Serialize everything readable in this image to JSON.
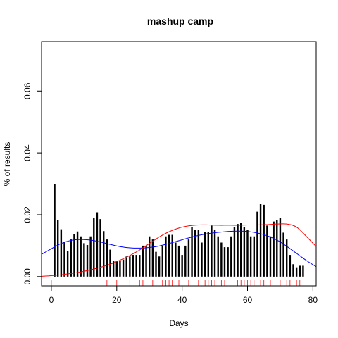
{
  "chart_data": {
    "type": "bar",
    "title": "mashup camp",
    "xlabel": "Days",
    "ylabel": "% of results",
    "xlim": [
      -3,
      81
    ],
    "ylim": [
      -0.003,
      0.076
    ],
    "x_ticks": [
      0,
      20,
      40,
      60,
      80
    ],
    "x_tick_labels": [
      "0",
      "20",
      "40",
      "60",
      "80"
    ],
    "y_ticks": [
      0.0,
      0.02,
      0.04,
      0.06
    ],
    "y_tick_labels": [
      "0.00",
      "0.02",
      "0.04",
      "0.06"
    ],
    "bar_color": "#000000",
    "series": [
      {
        "type": "bar",
        "x": [
          1,
          2,
          3,
          4,
          5,
          6,
          7,
          8,
          9,
          10,
          11,
          12,
          13,
          14,
          15,
          16,
          17,
          18,
          19,
          20,
          21,
          22,
          23,
          24,
          25,
          26,
          27,
          28,
          29,
          30,
          31,
          32,
          33,
          34,
          35,
          36,
          37,
          38,
          39,
          40,
          41,
          42,
          43,
          44,
          45,
          46,
          47,
          48,
          49,
          50,
          51,
          52,
          53,
          54,
          55,
          56,
          57,
          58,
          59,
          60,
          61,
          62,
          63,
          64,
          65,
          66,
          67,
          68,
          69,
          70,
          71,
          72,
          73,
          74,
          75,
          76,
          77
        ],
        "values": [
          0.0298,
          0.0183,
          0.0153,
          0.011,
          0.0082,
          0.012,
          0.0138,
          0.0146,
          0.013,
          0.0108,
          0.0102,
          0.013,
          0.019,
          0.0208,
          0.0186,
          0.0147,
          0.012,
          0.0087,
          0.005,
          0.005,
          0.005,
          0.0055,
          0.0065,
          0.0065,
          0.007,
          0.007,
          0.007,
          0.01,
          0.01,
          0.013,
          0.012,
          0.008,
          0.0065,
          0.01,
          0.013,
          0.0135,
          0.0135,
          0.011,
          0.01,
          0.007,
          0.01,
          0.012,
          0.016,
          0.015,
          0.015,
          0.011,
          0.0145,
          0.0145,
          0.0165,
          0.015,
          0.013,
          0.011,
          0.0095,
          0.0095,
          0.013,
          0.016,
          0.017,
          0.0175,
          0.016,
          0.015,
          0.013,
          0.013,
          0.021,
          0.0235,
          0.0232,
          0.0165,
          0.013,
          0.0178,
          0.0182,
          0.019,
          0.0142,
          0.012,
          0.007,
          0.004,
          0.003,
          0.0035,
          0.0035
        ]
      },
      {
        "type": "line",
        "color": "#0000ff",
        "x": [
          -3,
          0,
          3,
          6,
          9,
          12,
          15,
          18,
          21,
          24,
          27,
          30,
          33,
          36,
          39,
          42,
          45,
          48,
          51,
          54,
          57,
          60,
          63,
          66,
          69,
          72,
          75,
          78,
          81
        ],
        "values": [
          0.0072,
          0.009,
          0.0107,
          0.0117,
          0.012,
          0.0118,
          0.0112,
          0.0104,
          0.0097,
          0.0093,
          0.0092,
          0.0094,
          0.0099,
          0.0107,
          0.0116,
          0.0125,
          0.0133,
          0.0139,
          0.0143,
          0.0146,
          0.0147,
          0.0146,
          0.0141,
          0.0132,
          0.0118,
          0.0098,
          0.0075,
          0.0052,
          0.0032
        ]
      },
      {
        "type": "line",
        "color": "#ff0000",
        "x": [
          -3,
          0,
          3,
          6,
          9,
          12,
          15,
          18,
          21,
          24,
          27,
          30,
          33,
          36,
          39,
          42,
          45,
          48,
          51,
          54,
          57,
          60,
          63,
          66,
          69,
          72,
          75,
          78,
          81
        ],
        "values": [
          0.0001,
          0.0003,
          0.0006,
          0.001,
          0.0015,
          0.0022,
          0.003,
          0.004,
          0.0053,
          0.0068,
          0.0086,
          0.0107,
          0.0128,
          0.0145,
          0.0157,
          0.0164,
          0.0167,
          0.0167,
          0.0166,
          0.0166,
          0.0166,
          0.0167,
          0.0167,
          0.0168,
          0.017,
          0.017,
          0.016,
          0.013,
          0.0097
        ]
      },
      {
        "type": "rug",
        "color": "#ff0000",
        "x": [
          0,
          17,
          20,
          24,
          27,
          28,
          31,
          34,
          35,
          36,
          37,
          39,
          42,
          43,
          45,
          47,
          48,
          49,
          50,
          52,
          53,
          57,
          58,
          59,
          60,
          61,
          62,
          64,
          65,
          67,
          70,
          72,
          73,
          75,
          76
        ]
      }
    ]
  }
}
